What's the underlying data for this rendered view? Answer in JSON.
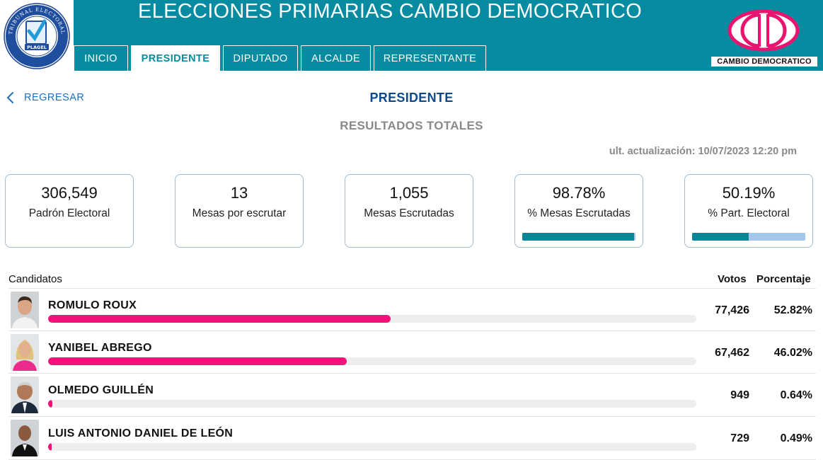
{
  "header": {
    "title": "ELECCIONES PRIMARIAS CAMBIO DEMOCRATICO",
    "tabs": [
      {
        "label": "INICIO",
        "active": false
      },
      {
        "label": "PRESIDENTE",
        "active": true
      },
      {
        "label": "DIPUTADO",
        "active": false
      },
      {
        "label": "ALCALDE",
        "active": false
      },
      {
        "label": "REPRESENTANTE",
        "active": false
      }
    ],
    "party_logo_caption": "CAMBIO DEMOCRATICO",
    "te_logo_text": "TRIBUNAL ELECTORAL",
    "te_logo_badge": "PLAGEL",
    "brand_color": "#068ba0",
    "party_color": "#e8146f"
  },
  "nav": {
    "back_label": "REGRESAR",
    "back_icon": "chevron-left-icon"
  },
  "page": {
    "title": "PRESIDENTE",
    "subtitle": "RESULTADOS TOTALES",
    "updated": "ult. actualización: 10/07/2023 12:20 pm"
  },
  "stats": [
    {
      "value": "306,549",
      "label": "Padrón Electoral"
    },
    {
      "value": "13",
      "label": "Mesas por escrutar"
    },
    {
      "value": "1,055",
      "label": "Mesas Escrutadas"
    },
    {
      "value": "98.78%",
      "label": "% Mesas Escrutadas",
      "progress": 0.9878
    },
    {
      "value": "50.19%",
      "label": "% Part. Electoral",
      "progress": 0.5019
    }
  ],
  "table": {
    "col_candidates": "Candidatos",
    "col_votes": "Votos",
    "col_percent": "Porcentaje",
    "bar_color": "#f3127a",
    "rows": [
      {
        "name": "ROMULO ROUX",
        "votes": "77,426",
        "percent": "52.82%",
        "share": 0.5282
      },
      {
        "name": "YANIBEL ABREGO",
        "votes": "67,462",
        "percent": "46.02%",
        "share": 0.4602
      },
      {
        "name": "OLMEDO GUILLÉN",
        "votes": "949",
        "percent": "0.64%",
        "share": 0.0064
      },
      {
        "name": "LUIS ANTONIO DANIEL DE LEÓN",
        "votes": "729",
        "percent": "0.49%",
        "share": 0.0049
      }
    ]
  }
}
